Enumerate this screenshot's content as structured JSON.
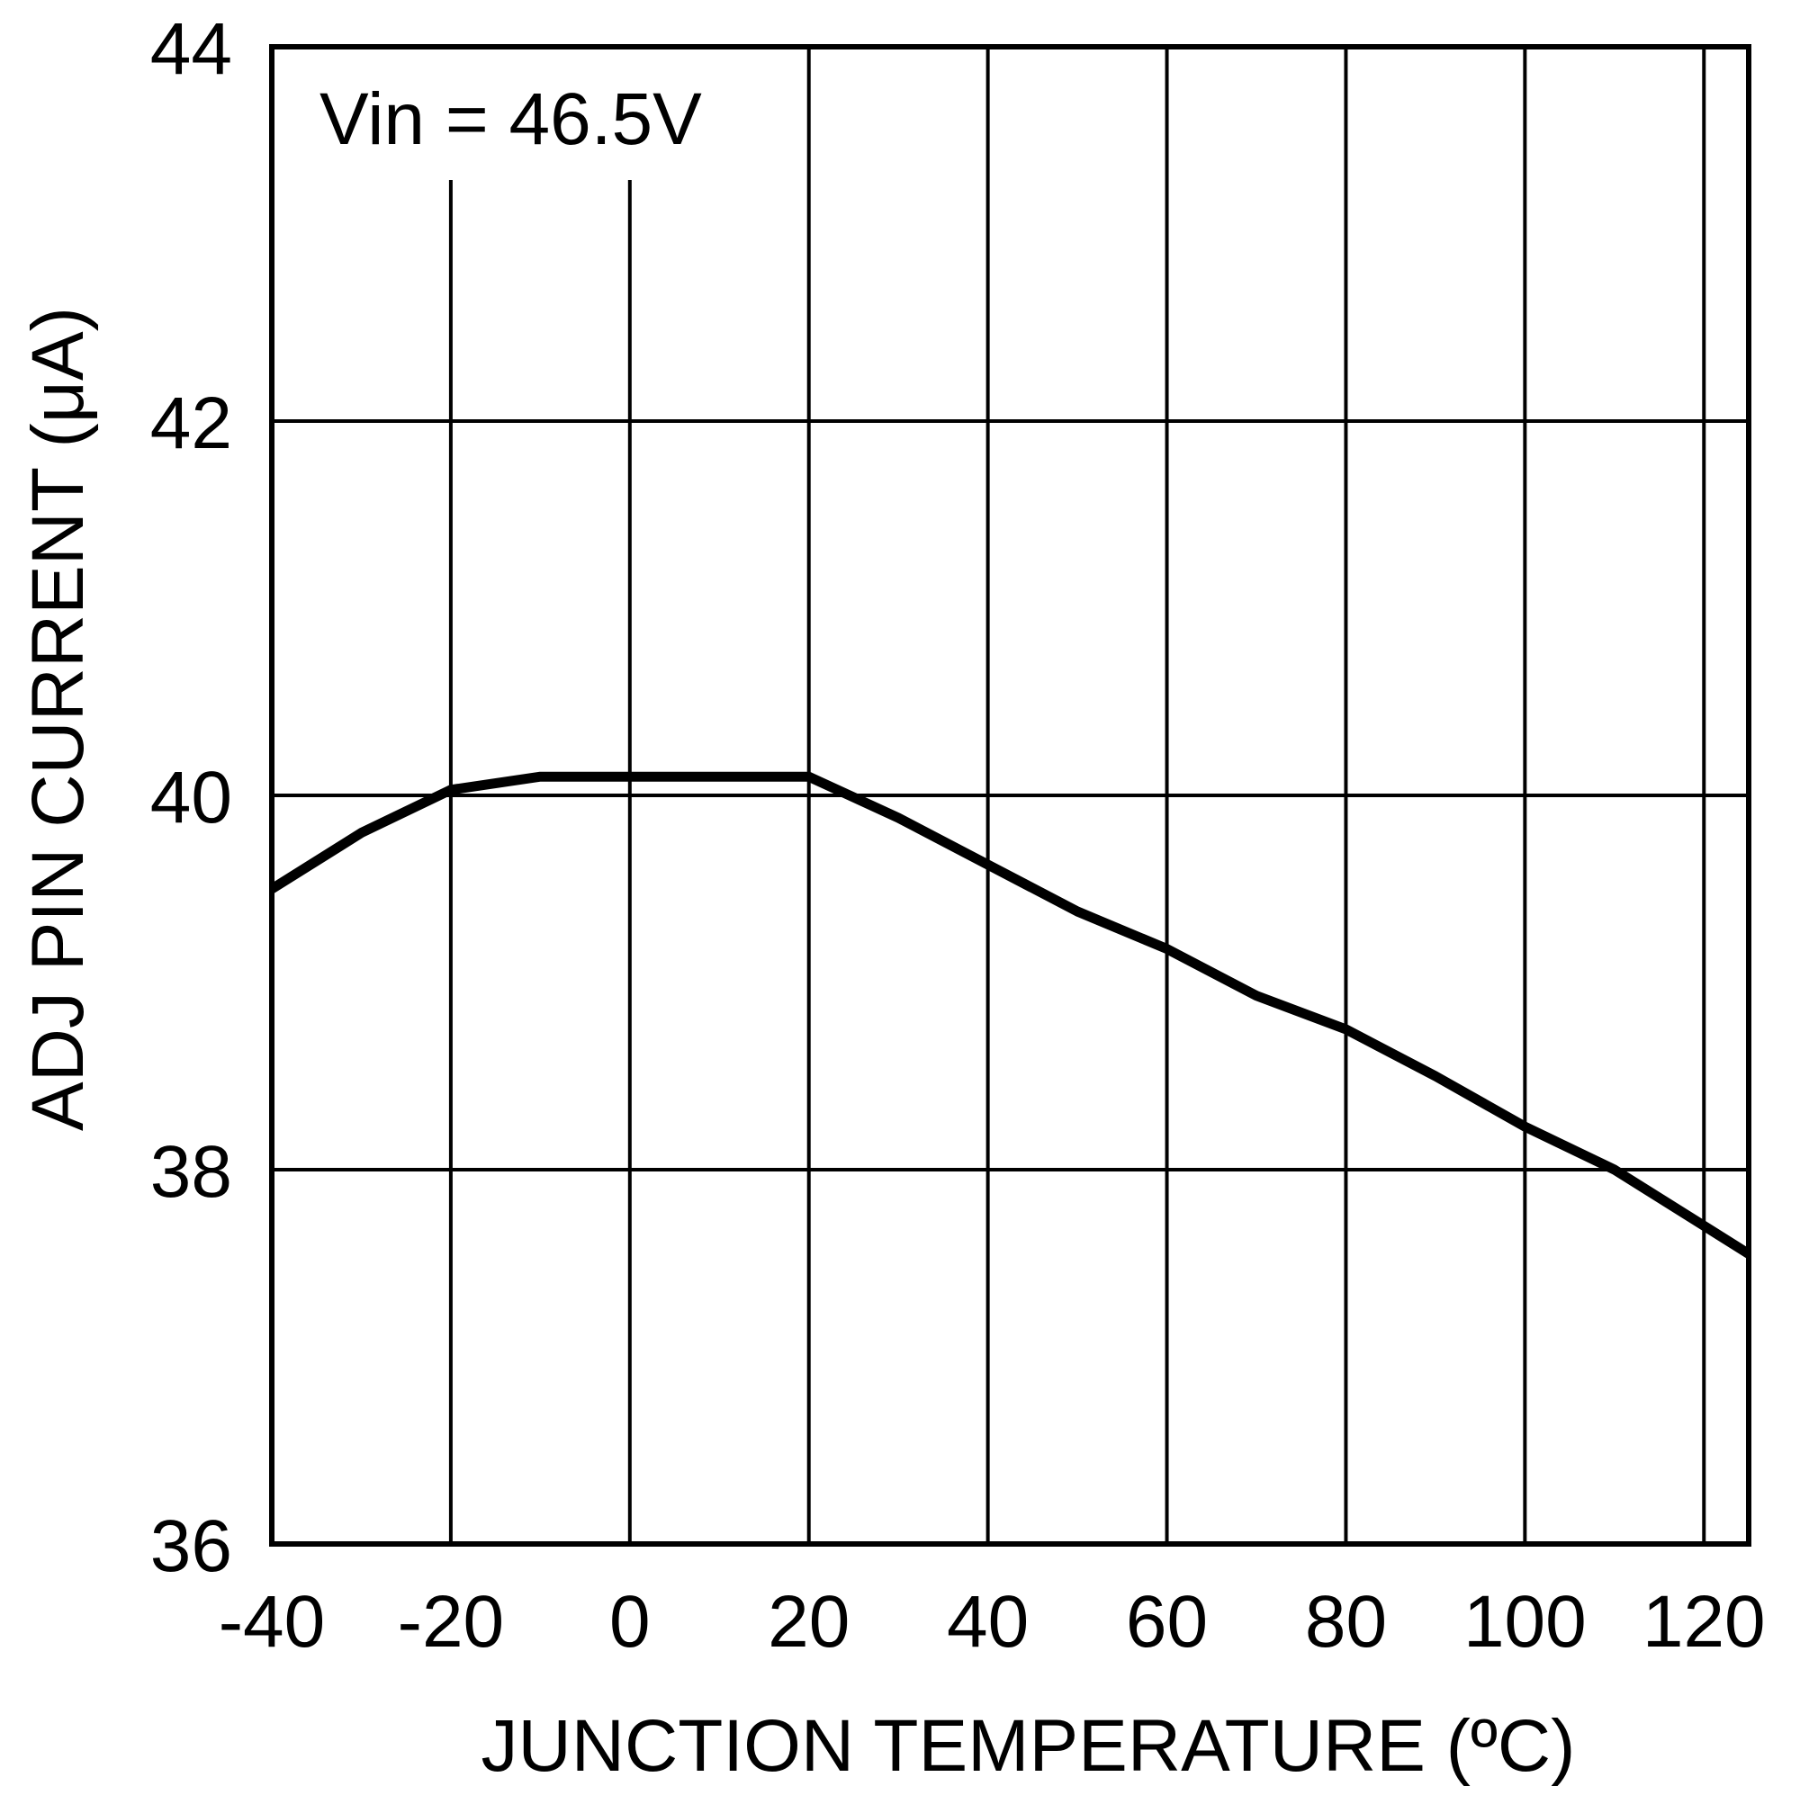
{
  "chart_data": {
    "type": "line",
    "title": "",
    "xlabel": "JUNCTION TEMPERATURE (ºC)",
    "ylabel": "ADJ PIN CURRENT (μA)",
    "xlim": [
      -40,
      125
    ],
    "ylim": [
      36,
      44
    ],
    "xticks": [
      -40,
      -20,
      0,
      20,
      40,
      60,
      80,
      100,
      120
    ],
    "yticks": [
      36,
      38,
      40,
      42,
      44
    ],
    "xtick_labels": [
      "-40",
      "-20",
      "0",
      "20",
      "40",
      "60",
      "80",
      "100",
      "120"
    ],
    "ytick_labels": [
      "36",
      "38",
      "40",
      "42",
      "44"
    ],
    "grid": true,
    "annotation": "Vin = 46.5V",
    "series": [
      {
        "x": [
          -40,
          -30,
          -20,
          -10,
          0,
          10,
          20,
          30,
          40,
          50,
          60,
          70,
          80,
          90,
          100,
          110,
          120,
          125
        ],
        "y": [
          39.5,
          39.8,
          40.03,
          40.1,
          40.1,
          40.1,
          40.1,
          39.88,
          39.63,
          39.38,
          39.18,
          38.93,
          38.75,
          38.5,
          38.23,
          38.0,
          37.7,
          37.55
        ]
      }
    ]
  },
  "colors": {
    "line": "#000000",
    "grid": "#000000",
    "background": "#ffffff"
  }
}
